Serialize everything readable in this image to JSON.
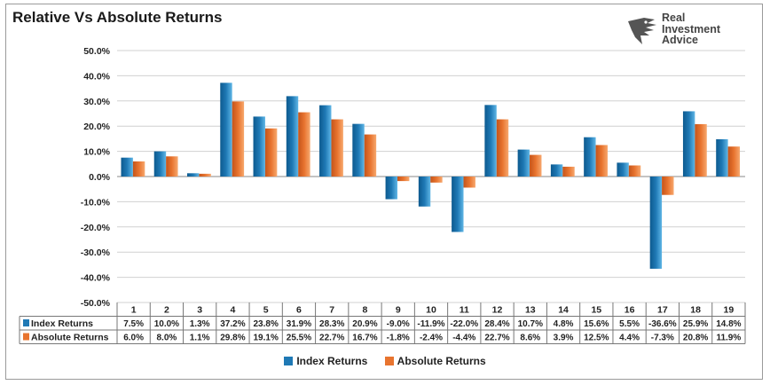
{
  "title": "Relative Vs Absolute Returns",
  "logo": {
    "lines": [
      "Real",
      "Investment",
      "Advice"
    ]
  },
  "colors": {
    "index": "#1f79b5",
    "absolute": "#e8742f",
    "grid": "#d0d0d0"
  },
  "chart_data": {
    "type": "bar",
    "categories": [
      "1",
      "2",
      "3",
      "4",
      "5",
      "6",
      "7",
      "8",
      "9",
      "10",
      "11",
      "12",
      "13",
      "14",
      "15",
      "16",
      "17",
      "18",
      "19"
    ],
    "series": [
      {
        "name": "Index Returns",
        "values": [
          7.5,
          10.0,
          1.3,
          37.2,
          23.8,
          31.9,
          28.3,
          20.9,
          -9.0,
          -11.9,
          -22.0,
          28.4,
          10.7,
          4.8,
          15.6,
          5.5,
          -36.6,
          25.9,
          14.8
        ],
        "labels": [
          "7.5%",
          "10.0%",
          "1.3%",
          "37.2%",
          "23.8%",
          "31.9%",
          "28.3%",
          "20.9%",
          "-9.0%",
          "-11.9%",
          "-22.0%",
          "28.4%",
          "10.7%",
          "4.8%",
          "15.6%",
          "5.5%",
          "-36.6%",
          "25.9%",
          "14.8%"
        ]
      },
      {
        "name": "Absolute Returns",
        "values": [
          6.0,
          8.0,
          1.1,
          29.8,
          19.1,
          25.5,
          22.7,
          16.7,
          -1.8,
          -2.4,
          -4.4,
          22.7,
          8.6,
          3.9,
          12.5,
          4.4,
          -7.3,
          20.8,
          11.9
        ],
        "labels": [
          "6.0%",
          "8.0%",
          "1.1%",
          "29.8%",
          "19.1%",
          "25.5%",
          "22.7%",
          "16.7%",
          "-1.8%",
          "-2.4%",
          "-4.4%",
          "22.7%",
          "8.6%",
          "3.9%",
          "12.5%",
          "4.4%",
          "-7.3%",
          "20.8%",
          "11.9%"
        ]
      }
    ],
    "ylim": [
      -50,
      50
    ],
    "yticks": [
      "50.0%",
      "40.0%",
      "30.0%",
      "20.0%",
      "10.0%",
      "0.0%",
      "-10.0%",
      "-20.0%",
      "-30.0%",
      "-40.0%",
      "-50.0%"
    ],
    "grid": true,
    "legend": "bottom",
    "data_table": true
  }
}
